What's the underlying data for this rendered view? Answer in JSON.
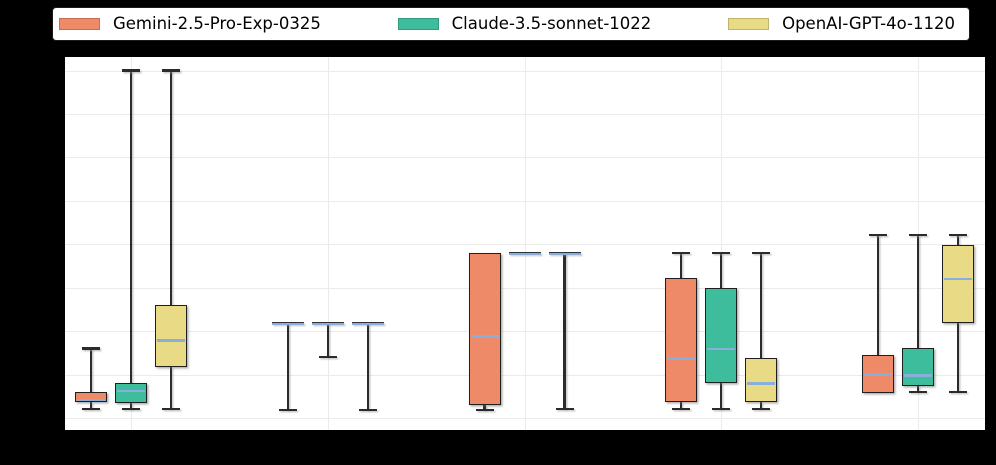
{
  "legend": {
    "items": [
      {
        "key": "gemini",
        "label": "Gemini-2.5-Pro-Exp-0325",
        "color": "#EE8A68"
      },
      {
        "key": "claude",
        "label": "Claude-3.5-sonnet-1022",
        "color": "#3DBD9C"
      },
      {
        "key": "openai",
        "label": "OpenAI-GPT-4o-1120",
        "color": "#E9DB85"
      }
    ]
  },
  "colors": {
    "figure_background": "#000000",
    "plot_background": "#FFFFFF",
    "grid": "#EBEBEB",
    "median_line": "#88AEDC",
    "box_edge": "#1F1F1F",
    "whisker": "#2B2B2B"
  },
  "chart_data": {
    "type": "box",
    "title": "",
    "xlabel": "",
    "ylabel": "",
    "n_categories": 5,
    "category_tick_labels": [
      "",
      "",
      "",
      "",
      ""
    ],
    "tick_labels_visible": false,
    "grid": true,
    "legend_position": "top",
    "ylim": [
      -0.029,
      0.831
    ],
    "y_gridlines": [
      0.0,
      0.1,
      0.2,
      0.3,
      0.4,
      0.5,
      0.6,
      0.7,
      0.8
    ],
    "series": [
      {
        "key": "gemini",
        "name": "Gemini-2.5-Pro-Exp-0325",
        "color": "#EE8A68",
        "boxes": [
          {
            "low": 0.02,
            "q1": 0.037,
            "med": 0.041,
            "q3": 0.059,
            "high": 0.16
          },
          {
            "low": 0.018,
            "q1": 0.219,
            "med": 0.219,
            "q3": 0.219,
            "high": 0.219
          },
          {
            "low": 0.018,
            "q1": 0.031,
            "med": 0.187,
            "q3": 0.38,
            "high": 0.38
          },
          {
            "low": 0.02,
            "q1": 0.036,
            "med": 0.137,
            "q3": 0.322,
            "high": 0.38
          },
          {
            "low": 0.057,
            "q1": 0.057,
            "med": 0.1,
            "q3": 0.145,
            "high": 0.421
          }
        ]
      },
      {
        "key": "claude",
        "name": "Claude-3.5-sonnet-1022",
        "color": "#3DBD9C",
        "boxes": [
          {
            "low": 0.02,
            "q1": 0.034,
            "med": 0.062,
            "q3": 0.08,
            "high": 0.8
          },
          {
            "low": 0.14,
            "q1": 0.219,
            "med": 0.219,
            "q3": 0.219,
            "high": 0.219
          },
          {
            "low": 0.38,
            "q1": 0.38,
            "med": 0.38,
            "q3": 0.38,
            "high": 0.38
          },
          {
            "low": 0.02,
            "q1": 0.08,
            "med": 0.159,
            "q3": 0.299,
            "high": 0.38
          },
          {
            "low": 0.06,
            "q1": 0.074,
            "med": 0.098,
            "q3": 0.16,
            "high": 0.421
          }
        ]
      },
      {
        "key": "openai",
        "name": "OpenAI-GPT-4o-1120",
        "color": "#E9DB85",
        "boxes": [
          {
            "low": 0.02,
            "q1": 0.118,
            "med": 0.178,
            "q3": 0.259,
            "high": 0.8
          },
          {
            "low": 0.018,
            "q1": 0.219,
            "med": 0.219,
            "q3": 0.219,
            "high": 0.219
          },
          {
            "low": 0.02,
            "q1": 0.38,
            "med": 0.38,
            "q3": 0.38,
            "high": 0.38
          },
          {
            "low": 0.02,
            "q1": 0.036,
            "med": 0.08,
            "q3": 0.137,
            "high": 0.38
          },
          {
            "low": 0.06,
            "q1": 0.219,
            "med": 0.32,
            "q3": 0.399,
            "high": 0.421
          }
        ]
      }
    ]
  }
}
